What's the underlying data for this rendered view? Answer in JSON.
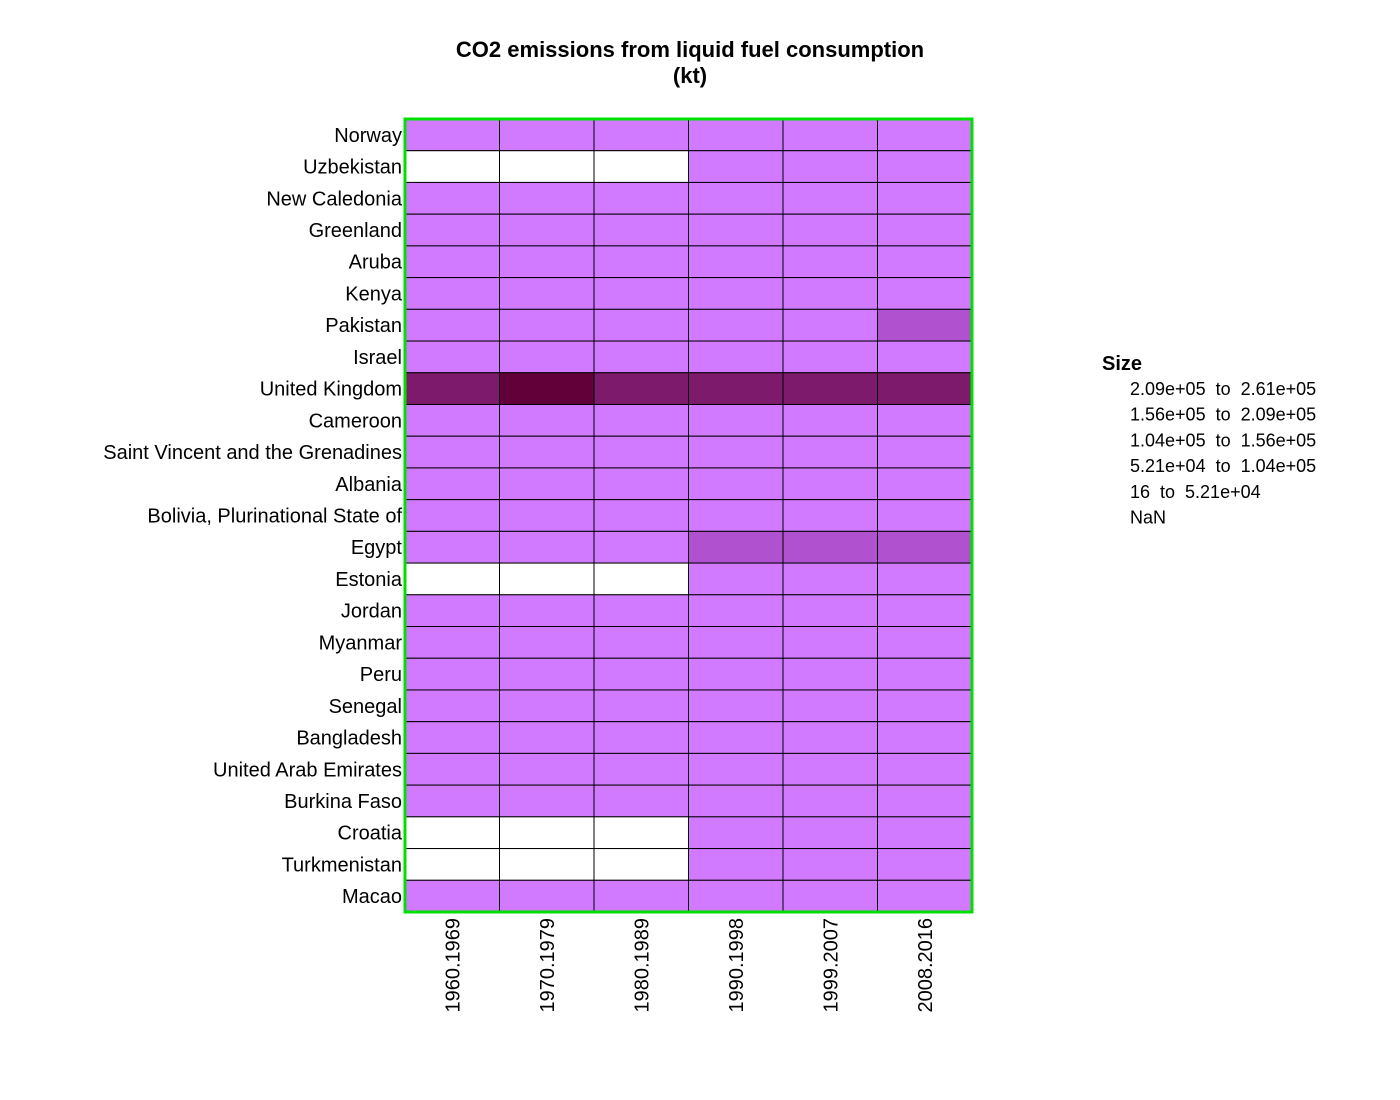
{
  "chart_data": {
    "type": "heatmap",
    "title": "CO2 emissions from liquid fuel consumption",
    "subtitle": "(kt)",
    "rows": [
      "Norway",
      "Uzbekistan",
      "New Caledonia",
      "Greenland",
      "Aruba",
      "Kenya",
      "Pakistan",
      "Israel",
      "United Kingdom",
      "Cameroon",
      "Saint Vincent and the Grenadines",
      "Albania",
      "Bolivia, Plurinational State of",
      "Egypt",
      "Estonia",
      "Jordan",
      "Myanmar",
      "Peru",
      "Senegal",
      "Bangladesh",
      "United Arab Emirates",
      "Burkina Faso",
      "Croatia",
      "Turkmenistan",
      "Macao"
    ],
    "columns": [
      "1960.1969",
      "1970.1979",
      "1980.1989",
      "1990.1998",
      "1999.2007",
      "2008.2016"
    ],
    "bins": [
      {
        "name": "NaN",
        "label": "NaN",
        "color": "#ffffff"
      },
      {
        "name": "16 to 5.21e+04",
        "label": "16  to  5.21e+04",
        "color": "#d17aff"
      },
      {
        "name": "5.21e+04 to 1.04e+05",
        "label": "5.21e+04  to  1.04e+05",
        "color": "#b052d0"
      },
      {
        "name": "1.04e+05 to 1.56e+05",
        "label": "1.04e+05  to  1.56e+05",
        "color": "#963a9e"
      },
      {
        "name": "1.56e+05 to 2.09e+05",
        "label": "1.56e+05  to  2.09e+05",
        "color": "#7e1a6c"
      },
      {
        "name": "2.09e+05 to 2.61e+05",
        "label": "2.09e+05  to  2.61e+05",
        "color": "#62003a"
      }
    ],
    "cells": [
      [
        1,
        1,
        1,
        1,
        1,
        1
      ],
      [
        0,
        0,
        0,
        1,
        1,
        1
      ],
      [
        1,
        1,
        1,
        1,
        1,
        1
      ],
      [
        1,
        1,
        1,
        1,
        1,
        1
      ],
      [
        1,
        1,
        1,
        1,
        1,
        1
      ],
      [
        1,
        1,
        1,
        1,
        1,
        1
      ],
      [
        1,
        1,
        1,
        1,
        1,
        2
      ],
      [
        1,
        1,
        1,
        1,
        1,
        1
      ],
      [
        4,
        5,
        4,
        4,
        4,
        4
      ],
      [
        1,
        1,
        1,
        1,
        1,
        1
      ],
      [
        1,
        1,
        1,
        1,
        1,
        1
      ],
      [
        1,
        1,
        1,
        1,
        1,
        1
      ],
      [
        1,
        1,
        1,
        1,
        1,
        1
      ],
      [
        1,
        1,
        1,
        2,
        2,
        2
      ],
      [
        0,
        0,
        0,
        1,
        1,
        1
      ],
      [
        1,
        1,
        1,
        1,
        1,
        1
      ],
      [
        1,
        1,
        1,
        1,
        1,
        1
      ],
      [
        1,
        1,
        1,
        1,
        1,
        1
      ],
      [
        1,
        1,
        1,
        1,
        1,
        1
      ],
      [
        1,
        1,
        1,
        1,
        1,
        1
      ],
      [
        1,
        1,
        1,
        1,
        1,
        1
      ],
      [
        1,
        1,
        1,
        1,
        1,
        1
      ],
      [
        0,
        0,
        0,
        1,
        1,
        1
      ],
      [
        0,
        0,
        0,
        1,
        1,
        1
      ],
      [
        1,
        1,
        1,
        1,
        1,
        1
      ]
    ],
    "legend": {
      "title": "Size",
      "placement": "right",
      "items": [
        "2.09e+05  to  2.61e+05",
        "1.56e+05  to  2.09e+05",
        "1.04e+05  to  1.56e+05",
        "5.21e+04  to  1.04e+05",
        "16  to  5.21e+04",
        "NaN"
      ]
    },
    "frame_color": "#00e000",
    "cell_border_color": "#000000"
  }
}
